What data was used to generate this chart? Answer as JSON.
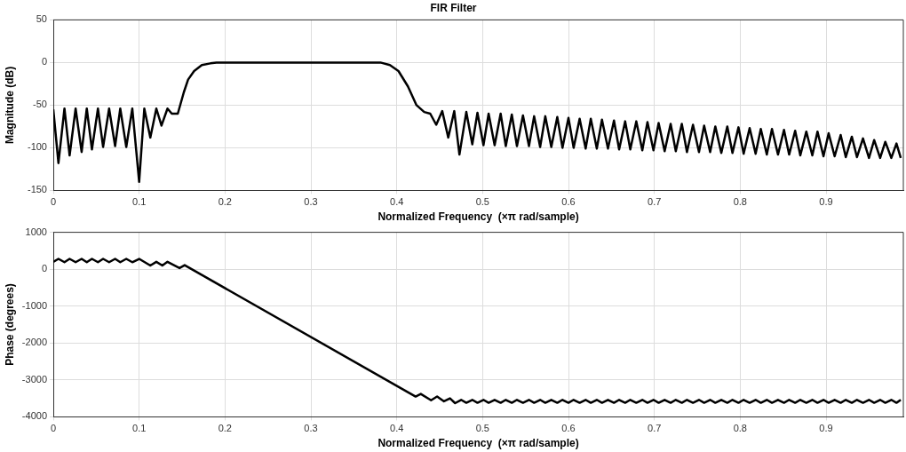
{
  "chart_data": [
    {
      "type": "line",
      "title": "FIR Filter",
      "xlabel": "Normalized Frequency  (×π rad/sample)",
      "ylabel": "Magnitude (dB)",
      "color": "#000000",
      "grid": true,
      "xlim": [
        0,
        0.99
      ],
      "xticks": [
        0,
        0.1,
        0.2,
        0.3,
        0.4,
        0.5,
        0.6,
        0.7,
        0.8,
        0.9
      ],
      "ylim": [
        -150,
        50
      ],
      "yticks": [
        -150,
        -100,
        -50,
        0,
        50
      ],
      "x": [
        0,
        0.006,
        0.013,
        0.019,
        0.026,
        0.033,
        0.039,
        0.045,
        0.052,
        0.058,
        0.065,
        0.072,
        0.078,
        0.085,
        0.092,
        0.1,
        0.106,
        0.113,
        0.12,
        0.126,
        0.133,
        0.138,
        0.145,
        0.152,
        0.157,
        0.164,
        0.173,
        0.183,
        0.19,
        0.381,
        0.392,
        0.402,
        0.413,
        0.423,
        0.432,
        0.439,
        0.446,
        0.453,
        0.46,
        0.467,
        0.473,
        0.481,
        0.488,
        0.494,
        0.501,
        0.507,
        0.514,
        0.521,
        0.527,
        0.534,
        0.54,
        0.547,
        0.554,
        0.56,
        0.567,
        0.573,
        0.58,
        0.587,
        0.593,
        0.6,
        0.606,
        0.613,
        0.62,
        0.626,
        0.633,
        0.639,
        0.646,
        0.653,
        0.659,
        0.666,
        0.672,
        0.679,
        0.686,
        0.692,
        0.699,
        0.705,
        0.712,
        0.719,
        0.725,
        0.732,
        0.738,
        0.745,
        0.752,
        0.758,
        0.765,
        0.771,
        0.778,
        0.785,
        0.791,
        0.798,
        0.804,
        0.811,
        0.818,
        0.824,
        0.831,
        0.837,
        0.844,
        0.851,
        0.857,
        0.864,
        0.87,
        0.877,
        0.884,
        0.89,
        0.897,
        0.903,
        0.91,
        0.917,
        0.923,
        0.93,
        0.936,
        0.943,
        0.95,
        0.956,
        0.963,
        0.969,
        0.976,
        0.982,
        0.987
      ],
      "values": [
        -55,
        -118,
        -54,
        -109,
        -54,
        -105,
        -54,
        -102,
        -54,
        -99,
        -54,
        -98,
        -54,
        -99,
        -54,
        -140,
        -54,
        -88,
        -54,
        -74,
        -54,
        -60,
        -60,
        -35,
        -20,
        -10,
        -3,
        -1,
        0,
        0,
        -3,
        -10,
        -28,
        -50,
        -58,
        -60,
        -73,
        -57,
        -88,
        -57,
        -108,
        -58,
        -96,
        -59,
        -97,
        -60,
        -97,
        -60,
        -98,
        -61,
        -98,
        -62,
        -98,
        -63,
        -99,
        -63,
        -99,
        -64,
        -100,
        -65,
        -100,
        -66,
        -101,
        -66,
        -101,
        -67,
        -101,
        -68,
        -102,
        -69,
        -102,
        -69,
        -103,
        -70,
        -103,
        -71,
        -104,
        -72,
        -104,
        -72,
        -105,
        -73,
        -105,
        -74,
        -105,
        -75,
        -106,
        -75,
        -106,
        -76,
        -107,
        -77,
        -107,
        -78,
        -108,
        -78,
        -108,
        -79,
        -108,
        -80,
        -109,
        -81,
        -109,
        -81,
        -110,
        -83,
        -110,
        -85,
        -111,
        -87,
        -111,
        -89,
        -112,
        -91,
        -112,
        -93,
        -112,
        -95,
        -112
      ]
    },
    {
      "type": "line",
      "xlabel": "Normalized Frequency  (×π rad/sample)",
      "ylabel": "Phase (degrees)",
      "color": "#000000",
      "grid": true,
      "xlim": [
        0,
        0.99
      ],
      "xticks": [
        0,
        0.1,
        0.2,
        0.3,
        0.4,
        0.5,
        0.6,
        0.7,
        0.8,
        0.9
      ],
      "ylim": [
        -4000,
        1000
      ],
      "yticks": [
        -4000,
        -3000,
        -2000,
        -1000,
        0,
        1000
      ],
      "x": [
        0,
        0.006,
        0.013,
        0.019,
        0.026,
        0.033,
        0.039,
        0.045,
        0.052,
        0.058,
        0.065,
        0.072,
        0.078,
        0.085,
        0.092,
        0.1,
        0.113,
        0.12,
        0.127,
        0.133,
        0.147,
        0.153,
        0.422,
        0.428,
        0.44,
        0.447,
        0.455,
        0.462,
        0.468,
        0.475,
        0.481,
        0.488,
        0.494,
        0.501,
        0.507,
        0.514,
        0.521,
        0.527,
        0.534,
        0.54,
        0.547,
        0.554,
        0.56,
        0.567,
        0.573,
        0.58,
        0.587,
        0.593,
        0.6,
        0.606,
        0.613,
        0.62,
        0.626,
        0.633,
        0.639,
        0.646,
        0.653,
        0.659,
        0.666,
        0.672,
        0.679,
        0.686,
        0.692,
        0.699,
        0.705,
        0.712,
        0.719,
        0.725,
        0.732,
        0.738,
        0.745,
        0.752,
        0.758,
        0.765,
        0.771,
        0.778,
        0.785,
        0.791,
        0.798,
        0.804,
        0.811,
        0.818,
        0.824,
        0.831,
        0.837,
        0.844,
        0.851,
        0.857,
        0.864,
        0.87,
        0.877,
        0.884,
        0.89,
        0.897,
        0.903,
        0.91,
        0.917,
        0.923,
        0.93,
        0.936,
        0.943,
        0.95,
        0.956,
        0.963,
        0.969,
        0.976,
        0.982,
        0.987
      ],
      "values": [
        200,
        280,
        190,
        280,
        190,
        280,
        190,
        280,
        190,
        280,
        190,
        280,
        190,
        280,
        190,
        280,
        100,
        200,
        100,
        200,
        30,
        110,
        -3450,
        -3380,
        -3550,
        -3450,
        -3580,
        -3500,
        -3630,
        -3540,
        -3620,
        -3540,
        -3620,
        -3540,
        -3620,
        -3540,
        -3620,
        -3540,
        -3620,
        -3540,
        -3620,
        -3540,
        -3620,
        -3540,
        -3620,
        -3540,
        -3620,
        -3540,
        -3620,
        -3540,
        -3620,
        -3540,
        -3620,
        -3540,
        -3620,
        -3540,
        -3620,
        -3540,
        -3620,
        -3540,
        -3620,
        -3540,
        -3620,
        -3540,
        -3620,
        -3540,
        -3620,
        -3540,
        -3620,
        -3540,
        -3620,
        -3540,
        -3620,
        -3540,
        -3620,
        -3540,
        -3620,
        -3540,
        -3620,
        -3540,
        -3620,
        -3540,
        -3620,
        -3540,
        -3620,
        -3540,
        -3620,
        -3540,
        -3620,
        -3540,
        -3620,
        -3540,
        -3620,
        -3540,
        -3620,
        -3540,
        -3620,
        -3540,
        -3620,
        -3540,
        -3620,
        -3540,
        -3620,
        -3540,
        -3620,
        -3540,
        -3620,
        -3540
      ]
    }
  ]
}
